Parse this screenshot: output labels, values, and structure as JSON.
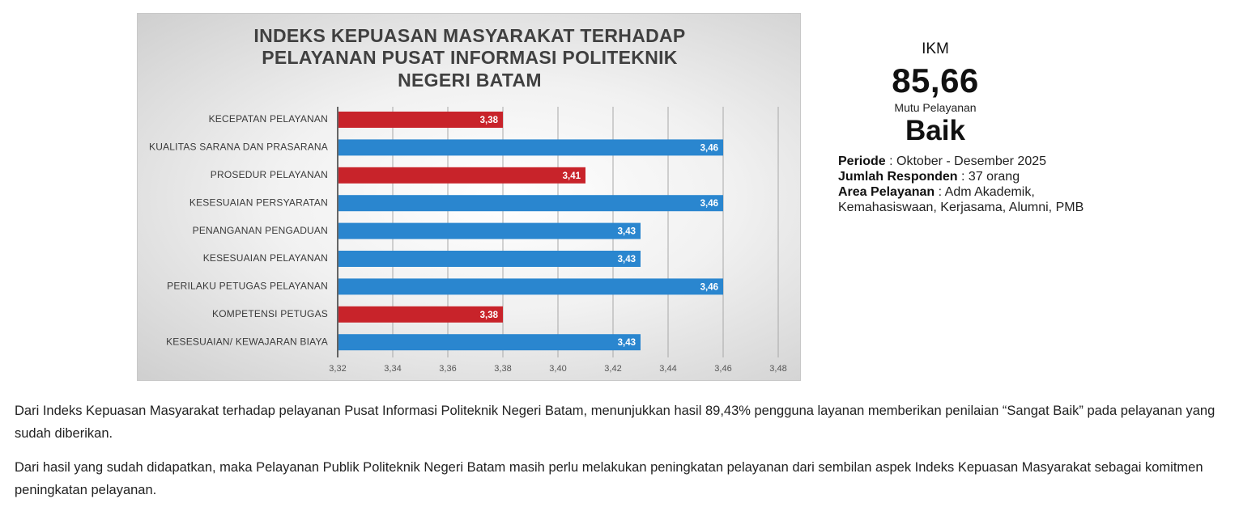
{
  "chart_data": {
    "type": "bar",
    "orientation": "horizontal",
    "title_lines": [
      "INDEKS KEPUASAN MASYARAKAT TERHADAP",
      "PELAYANAN PUSAT INFORMASI POLITEKNIK",
      "NEGERI BATAM"
    ],
    "categories": [
      "KECEPATAN PELAYANAN",
      "KUALITAS SARANA DAN PRASARANA",
      "PROSEDUR PELAYANAN",
      "KESESUAIAN PERSYARATAN",
      "PENANGANAN PENGADUAN",
      "KESESUAIAN PELAYANAN",
      "PERILAKU PETUGAS PELAYANAN",
      "KOMPETENSI PETUGAS",
      "KESESUAIAN/ KEWAJARAN BIAYA"
    ],
    "values": [
      3.38,
      3.46,
      3.41,
      3.46,
      3.43,
      3.43,
      3.46,
      3.38,
      3.43
    ],
    "value_labels": [
      "3,38",
      "3,46",
      "3,41",
      "3,46",
      "3,43",
      "3,43",
      "3,46",
      "3,38",
      "3,43"
    ],
    "bar_colors": [
      "#c8232a",
      "#2a86cf",
      "#c8232a",
      "#2a86cf",
      "#2a86cf",
      "#2a86cf",
      "#2a86cf",
      "#c8232a",
      "#2a86cf"
    ],
    "xlim": [
      3.32,
      3.48
    ],
    "x_ticks": [
      3.32,
      3.34,
      3.36,
      3.38,
      3.4,
      3.42,
      3.44,
      3.46,
      3.48
    ],
    "x_tick_labels": [
      "3,32",
      "3,34",
      "3,36",
      "3,38",
      "3,40",
      "3,42",
      "3,44",
      "3,46",
      "3,48"
    ],
    "grid": "vertical"
  },
  "summary": {
    "ikm_label": "IKM",
    "ikm_value": "85,66",
    "mutu_label": "Mutu Pelayanan",
    "mutu_value": "Baik",
    "periode_key": "Periode",
    "periode_value": ": Oktober - Desember 2025",
    "responden_key": "Jumlah Responden",
    "responden_value": ": 37 orang",
    "area_key": "Area Pelayanan",
    "area_value": ": Adm Akademik,",
    "area_value_2": "Kemahasiswaan, Kerjasama, Alumni, PMB"
  },
  "description": {
    "paragraph_1": "Dari Indeks Kepuasan Masyarakat terhadap pelayanan Pusat Informasi Politeknik Negeri Batam, menunjukkan hasil 89,43% pengguna layanan memberikan penilaian “Sangat Baik” pada pelayanan yang sudah diberikan.",
    "paragraph_2": "Dari hasil yang sudah didapatkan, maka Pelayanan Publik Politeknik Negeri Batam masih perlu melakukan peningkatan pelayanan dari sembilan aspek Indeks Kepuasan Masyarakat sebagai komitmen peningkatan pelayanan."
  }
}
